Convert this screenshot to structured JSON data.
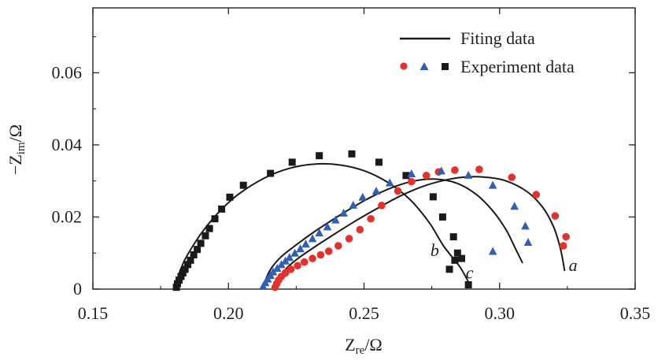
{
  "chart_data": {
    "type": "scatter",
    "title": "",
    "xlabel": {
      "main": "Z",
      "sub": "re",
      "unit": "/Ω"
    },
    "ylabel": {
      "prefix": "−Z",
      "sub": "im",
      "unit": "/Ω"
    },
    "xlim": [
      0.15,
      0.35
    ],
    "ylim": [
      0,
      0.078
    ],
    "xticks": [
      0.15,
      0.2,
      0.25,
      0.3,
      0.35
    ],
    "xtick_labels": [
      "0.15",
      "0.20",
      "0.25",
      "0.30",
      "0.35"
    ],
    "yticks": [
      0,
      0.02,
      0.04,
      0.06
    ],
    "ytick_labels": [
      "0",
      "0.02",
      "0.04",
      "0.06"
    ],
    "grid": false,
    "legend": {
      "position": "top-right",
      "fit_label": "Fiting data",
      "exp_label": "Experiment data"
    },
    "colors": {
      "a": "#e8302a",
      "b": "#1a1a1a",
      "c": "#2f5fb8",
      "fit": "#1a1a1a"
    },
    "series": [
      {
        "name": "a",
        "marker": "circle",
        "color": "#e8302a",
        "experiment": [
          [
            0.2172,
            0.0005
          ],
          [
            0.2178,
            0.0015
          ],
          [
            0.2185,
            0.0025
          ],
          [
            0.2195,
            0.0035
          ],
          [
            0.221,
            0.0045
          ],
          [
            0.223,
            0.0055
          ],
          [
            0.2255,
            0.0065
          ],
          [
            0.228,
            0.0075
          ],
          [
            0.231,
            0.0085
          ],
          [
            0.234,
            0.0095
          ],
          [
            0.237,
            0.0105
          ],
          [
            0.2405,
            0.012
          ],
          [
            0.2445,
            0.014
          ],
          [
            0.2485,
            0.0165
          ],
          [
            0.2525,
            0.0195
          ],
          [
            0.2565,
            0.0232
          ],
          [
            0.2625,
            0.0272
          ],
          [
            0.2675,
            0.0298
          ],
          [
            0.273,
            0.0315
          ],
          [
            0.2775,
            0.0325
          ],
          [
            0.2835,
            0.033
          ],
          [
            0.2925,
            0.0332
          ],
          [
            0.3045,
            0.031
          ],
          [
            0.3135,
            0.0262
          ],
          [
            0.3205,
            0.0203
          ],
          [
            0.3245,
            0.0145
          ],
          [
            0.3235,
            0.012
          ]
        ],
        "fit": [
          [
            0.2172,
            0.0
          ],
          [
            0.2178,
            0.0015
          ],
          [
            0.2195,
            0.0038
          ],
          [
            0.222,
            0.0062
          ],
          [
            0.226,
            0.0087
          ],
          [
            0.232,
            0.0118
          ],
          [
            0.239,
            0.0152
          ],
          [
            0.246,
            0.0185
          ],
          [
            0.254,
            0.022
          ],
          [
            0.262,
            0.0253
          ],
          [
            0.27,
            0.028
          ],
          [
            0.278,
            0.0299
          ],
          [
            0.286,
            0.031
          ],
          [
            0.294,
            0.0311
          ],
          [
            0.302,
            0.0301
          ],
          [
            0.31,
            0.0271
          ],
          [
            0.316,
            0.0226
          ],
          [
            0.32,
            0.0171
          ],
          [
            0.3225,
            0.011
          ],
          [
            0.324,
            0.005
          ]
        ],
        "curve_label": "a",
        "curve_label_at": [
          0.3255,
          0.005
        ]
      },
      {
        "name": "b",
        "marker": "square",
        "color": "#1a1a1a",
        "experiment": [
          [
            0.1808,
            0.0005
          ],
          [
            0.1812,
            0.0015
          ],
          [
            0.1818,
            0.0025
          ],
          [
            0.1825,
            0.0035
          ],
          [
            0.1832,
            0.0045
          ],
          [
            0.184,
            0.0055
          ],
          [
            0.185,
            0.0068
          ],
          [
            0.186,
            0.008
          ],
          [
            0.1872,
            0.0095
          ],
          [
            0.1885,
            0.011
          ],
          [
            0.1898,
            0.0127
          ],
          [
            0.1915,
            0.0148
          ],
          [
            0.193,
            0.0168
          ],
          [
            0.195,
            0.0195
          ],
          [
            0.1975,
            0.0222
          ],
          [
            0.2005,
            0.0255
          ],
          [
            0.2055,
            0.0288
          ],
          [
            0.2155,
            0.0321
          ],
          [
            0.2235,
            0.0352
          ],
          [
            0.2335,
            0.037
          ],
          [
            0.2455,
            0.0375
          ],
          [
            0.2555,
            0.0352
          ],
          [
            0.2655,
            0.0315
          ],
          [
            0.2755,
            0.0256
          ],
          [
            0.279,
            0.02
          ],
          [
            0.283,
            0.0145
          ],
          [
            0.2845,
            0.01
          ],
          [
            0.286,
            0.0085
          ],
          [
            0.2835,
            0.008
          ],
          [
            0.2815,
            0.0055
          ],
          [
            0.2885,
            0.0012
          ]
        ],
        "fit": [
          [
            0.1808,
            0.0
          ],
          [
            0.1815,
            0.0035
          ],
          [
            0.1835,
            0.0075
          ],
          [
            0.1865,
            0.0115
          ],
          [
            0.1905,
            0.016
          ],
          [
            0.196,
            0.021
          ],
          [
            0.2035,
            0.0262
          ],
          [
            0.213,
            0.0307
          ],
          [
            0.2225,
            0.0335
          ],
          [
            0.232,
            0.0347
          ],
          [
            0.2415,
            0.0344
          ],
          [
            0.2505,
            0.0327
          ],
          [
            0.259,
            0.0295
          ],
          [
            0.267,
            0.0248
          ],
          [
            0.274,
            0.0185
          ],
          [
            0.2795,
            0.0118
          ],
          [
            0.2855,
            0.006
          ],
          [
            0.2895,
            0.0005
          ]
        ],
        "curve_label": "b",
        "curve_label_at": [
          0.2745,
          0.0092
        ]
      },
      {
        "name": "c",
        "marker": "triangle",
        "color": "#2f5fb8",
        "experiment": [
          [
            0.2128,
            0.0008
          ],
          [
            0.2136,
            0.0018
          ],
          [
            0.2145,
            0.0028
          ],
          [
            0.2155,
            0.0038
          ],
          [
            0.2165,
            0.0048
          ],
          [
            0.218,
            0.0058
          ],
          [
            0.2195,
            0.0068
          ],
          [
            0.221,
            0.0078
          ],
          [
            0.2225,
            0.0088
          ],
          [
            0.2245,
            0.01
          ],
          [
            0.2265,
            0.0112
          ],
          [
            0.2285,
            0.0125
          ],
          [
            0.231,
            0.014
          ],
          [
            0.2335,
            0.0156
          ],
          [
            0.2365,
            0.0173
          ],
          [
            0.2395,
            0.0192
          ],
          [
            0.2425,
            0.0211
          ],
          [
            0.246,
            0.0233
          ],
          [
            0.2495,
            0.0255
          ],
          [
            0.2545,
            0.0272
          ],
          [
            0.2595,
            0.0295
          ],
          [
            0.2675,
            0.032
          ],
          [
            0.2785,
            0.0328
          ],
          [
            0.2885,
            0.0316
          ],
          [
            0.2975,
            0.0288
          ],
          [
            0.3055,
            0.023
          ],
          [
            0.3095,
            0.0175
          ],
          [
            0.3105,
            0.013
          ],
          [
            0.2975,
            0.0105
          ]
        ],
        "fit": [
          [
            0.2128,
            0.0
          ],
          [
            0.2138,
            0.0028
          ],
          [
            0.216,
            0.006
          ],
          [
            0.2195,
            0.009
          ],
          [
            0.2245,
            0.012
          ],
          [
            0.2305,
            0.0153
          ],
          [
            0.2375,
            0.0188
          ],
          [
            0.245,
            0.0223
          ],
          [
            0.2525,
            0.0255
          ],
          [
            0.2605,
            0.0282
          ],
          [
            0.2685,
            0.03
          ],
          [
            0.2765,
            0.0305
          ],
          [
            0.2845,
            0.0293
          ],
          [
            0.2915,
            0.0262
          ],
          [
            0.2975,
            0.0217
          ],
          [
            0.3025,
            0.0163
          ],
          [
            0.306,
            0.011
          ],
          [
            0.3085,
            0.0072
          ]
        ],
        "curve_label": "c",
        "curve_label_at": [
          0.2875,
          0.003
        ]
      }
    ]
  }
}
